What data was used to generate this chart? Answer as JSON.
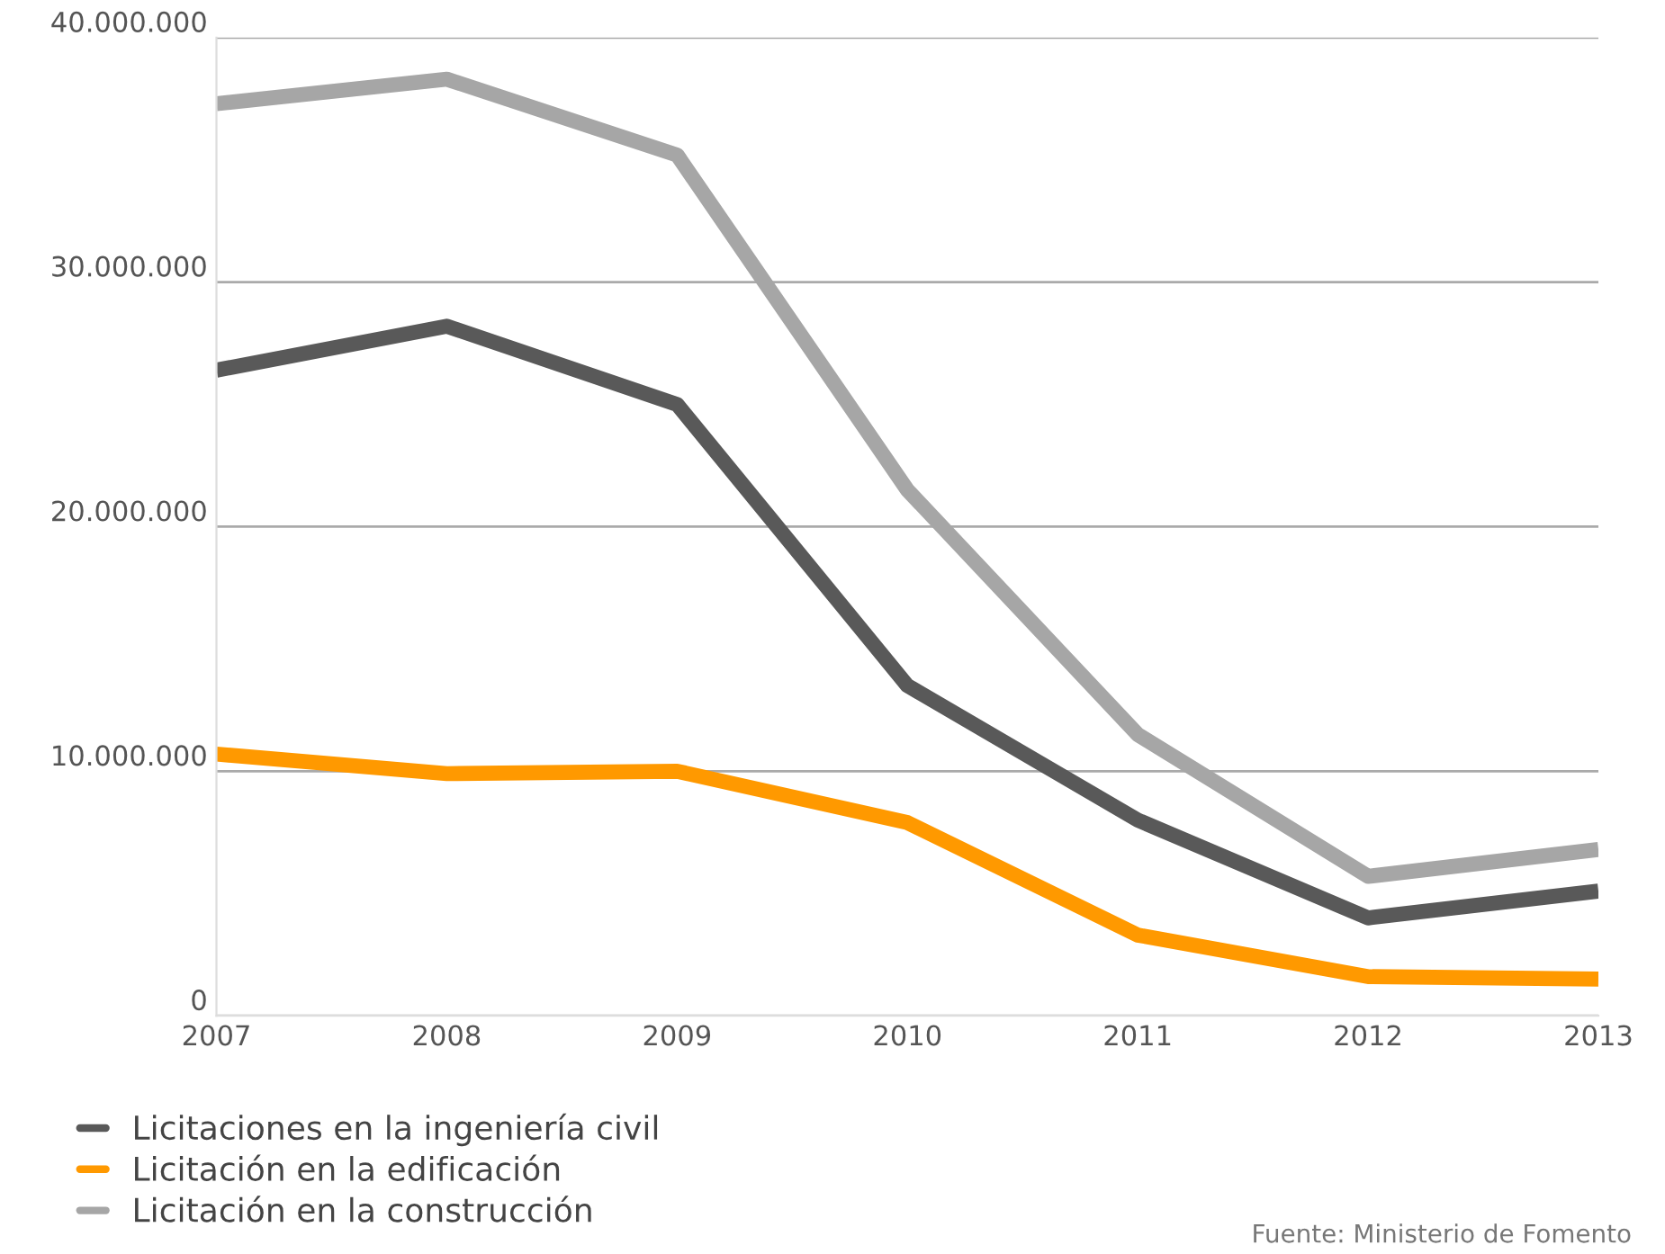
{
  "chart_data": {
    "type": "line",
    "categories": [
      "2007",
      "2008",
      "2009",
      "2010",
      "2011",
      "2012",
      "2013"
    ],
    "series": [
      {
        "name": "Licitaciones en la ingeniería civil",
        "color": "#595959",
        "values": [
          26400000,
          28200000,
          25000000,
          13500000,
          8000000,
          4000000,
          5100000
        ]
      },
      {
        "name": "Licitación en la edificación",
        "color": "#ff9900",
        "values": [
          10700000,
          9900000,
          10000000,
          7900000,
          3300000,
          1600000,
          1500000
        ]
      },
      {
        "name": "Licitación en la construcción",
        "color": "#a6a6a6",
        "values": [
          37300000,
          38300000,
          35200000,
          21500000,
          11500000,
          5700000,
          6800000
        ]
      }
    ],
    "ylim": [
      0,
      40000000
    ],
    "yticks": [
      {
        "value": 0,
        "label": "0"
      },
      {
        "value": 10000000,
        "label": "10.000.000"
      },
      {
        "value": 20000000,
        "label": "20.000.000"
      },
      {
        "value": 30000000,
        "label": "30.000.000"
      },
      {
        "value": 40000000,
        "label": "40.000.000"
      }
    ],
    "grid": "y",
    "legend": "bottom left",
    "marker": "none",
    "line_style": "solid",
    "annotations": [
      "Fuente: Ministerio de Fomento"
    ]
  }
}
